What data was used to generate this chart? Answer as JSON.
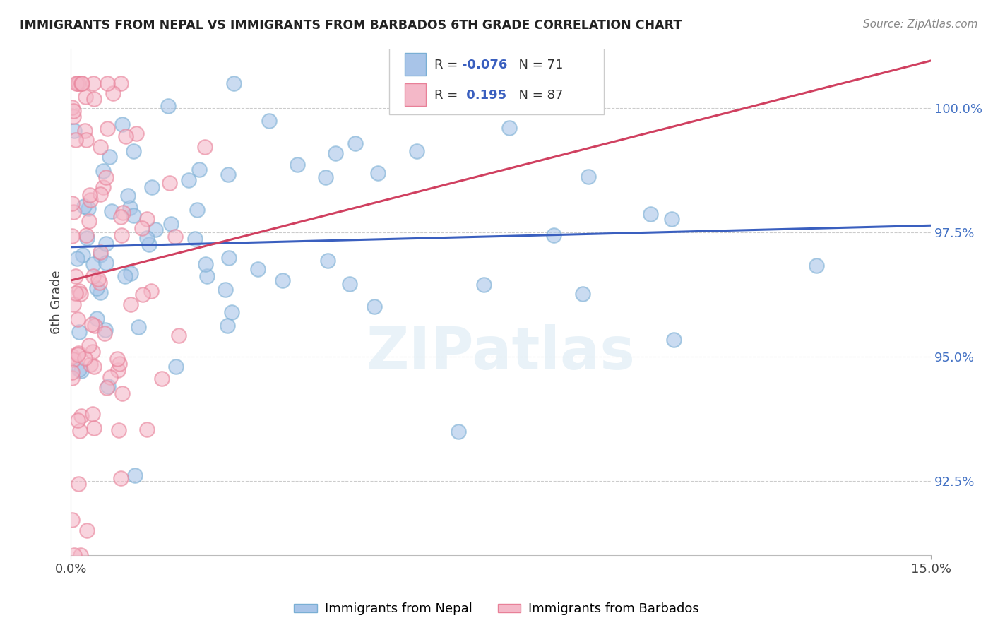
{
  "title": "IMMIGRANTS FROM NEPAL VS IMMIGRANTS FROM BARBADOS 6TH GRADE CORRELATION CHART",
  "source": "Source: ZipAtlas.com",
  "ylabel": "6th Grade",
  "right_yticks": [
    92.5,
    95.0,
    97.5,
    100.0
  ],
  "right_ytick_labels": [
    "92.5%",
    "95.0%",
    "97.5%",
    "100.0%"
  ],
  "xmin": 0.0,
  "xmax": 15.0,
  "ymin": 91.0,
  "ymax": 101.2,
  "blue_face_color": "#a8c4e8",
  "blue_edge_color": "#7aafd4",
  "pink_face_color": "#f4b8c8",
  "pink_edge_color": "#e88098",
  "blue_line_color": "#3a5fbf",
  "pink_line_color": "#d04060",
  "watermark": "ZIPatlas",
  "nepal_r": -0.076,
  "nepal_n": 71,
  "barbados_r": 0.195,
  "barbados_n": 87,
  "nepal_seed": 42,
  "barbados_seed": 99
}
